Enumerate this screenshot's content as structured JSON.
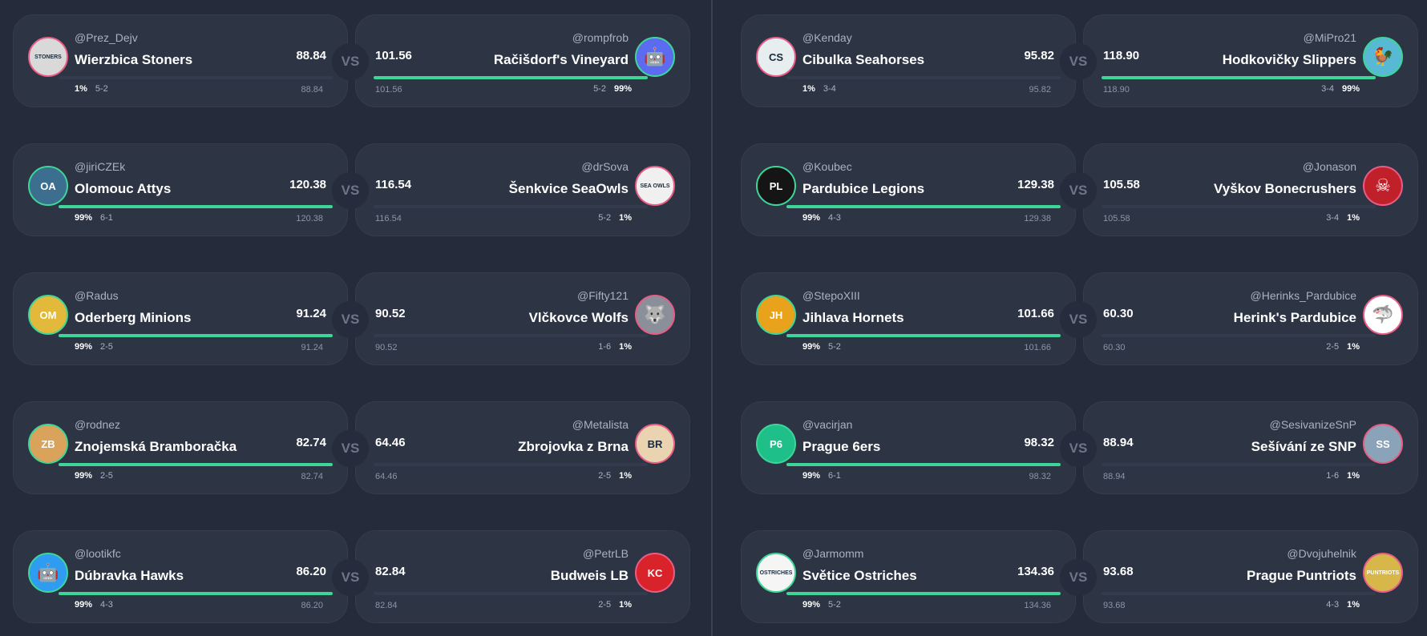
{
  "vs_label": "VS",
  "left": [
    {
      "home": {
        "handle": "@Prez_Dejv",
        "team": "Wierzbica Stoners",
        "score": "88.84",
        "pct": "1%",
        "record": "5-2",
        "points": "88.84",
        "winner": false,
        "avatar_icon": "stoners-logo",
        "avatar_color": "#d9d9d9",
        "avatar_text": "STONERS"
      },
      "away": {
        "handle": "@rompfrob",
        "team": "Račišdorf's Vineyard",
        "score": "101.56",
        "pct": "99%",
        "record": "5-2",
        "points": "101.56",
        "winner": true,
        "avatar_icon": "robot-icon",
        "avatar_color": "#5b6cf0",
        "avatar_text": "🤖"
      }
    },
    {
      "home": {
        "handle": "@jiriCZEk",
        "team": "Olomouc Attys",
        "score": "120.38",
        "pct": "99%",
        "record": "6-1",
        "points": "120.38",
        "winner": true,
        "avatar_icon": "attys-logo",
        "avatar_color": "#3c6e8f",
        "avatar_text": "OA"
      },
      "away": {
        "handle": "@drSova",
        "team": "Šenkvice SeaOwls",
        "score": "116.54",
        "pct": "1%",
        "record": "5-2",
        "points": "116.54",
        "winner": false,
        "avatar_icon": "owl-logo",
        "avatar_color": "#f0f0f0",
        "avatar_text": "SEA OWLS"
      }
    },
    {
      "home": {
        "handle": "@Radus",
        "team": "Oderberg Minions",
        "score": "91.24",
        "pct": "99%",
        "record": "2-5",
        "points": "91.24",
        "winner": true,
        "avatar_icon": "minion-logo",
        "avatar_color": "#e2b93b",
        "avatar_text": "OM"
      },
      "away": {
        "handle": "@Fifty121",
        "team": "Vlčkovce Wolfs",
        "score": "90.52",
        "pct": "1%",
        "record": "1-6",
        "points": "90.52",
        "winner": false,
        "avatar_icon": "wolf-logo",
        "avatar_color": "#8a8f99",
        "avatar_text": "🐺"
      }
    },
    {
      "home": {
        "handle": "@rodnez",
        "team": "Znojemská Bramboračka",
        "score": "82.74",
        "pct": "99%",
        "record": "2-5",
        "points": "82.74",
        "winner": true,
        "avatar_icon": "potato-logo",
        "avatar_color": "#d9a35b",
        "avatar_text": "ZB"
      },
      "away": {
        "handle": "@Metalista",
        "team": "Zbrojovka z Brna",
        "score": "64.46",
        "pct": "1%",
        "record": "2-5",
        "points": "64.46",
        "winner": false,
        "avatar_icon": "zbrojovka-logo",
        "avatar_color": "#e9d3b0",
        "avatar_text": "BR"
      }
    },
    {
      "home": {
        "handle": "@lootikfc",
        "team": "Dúbravka Hawks",
        "score": "86.20",
        "pct": "99%",
        "record": "4-3",
        "points": "86.20",
        "winner": true,
        "avatar_icon": "blue-robot-logo",
        "avatar_color": "#2e9cf0",
        "avatar_text": "🤖"
      },
      "away": {
        "handle": "@PetrLB",
        "team": "Budweis LB",
        "score": "82.84",
        "pct": "1%",
        "record": "2-5",
        "points": "82.84",
        "winner": false,
        "avatar_icon": "chiefs-logo",
        "avatar_color": "#d8232a",
        "avatar_text": "KC"
      }
    }
  ],
  "right": [
    {
      "home": {
        "handle": "@Kenday",
        "team": "Cibulka Seahorses",
        "score": "95.82",
        "pct": "1%",
        "record": "3-4",
        "points": "95.82",
        "winner": false,
        "avatar_icon": "seahorse-logo",
        "avatar_color": "#e6eef0",
        "avatar_text": "CS"
      },
      "away": {
        "handle": "@MiPro21",
        "team": "Hodkovičky Slippers",
        "score": "118.90",
        "pct": "99%",
        "record": "3-4",
        "points": "118.90",
        "winner": true,
        "avatar_icon": "rooster-logo",
        "avatar_color": "#58b9d4",
        "avatar_text": "🐓"
      }
    },
    {
      "home": {
        "handle": "@Koubec",
        "team": "Pardubice Legions",
        "score": "129.38",
        "pct": "99%",
        "record": "4-3",
        "points": "129.38",
        "winner": true,
        "avatar_icon": "spartan-logo",
        "avatar_color": "#151515",
        "avatar_text": "PL"
      },
      "away": {
        "handle": "@Jonason",
        "team": "Vyškov Bonecrushers",
        "score": "105.58",
        "pct": "1%",
        "record": "3-4",
        "points": "105.58",
        "winner": false,
        "avatar_icon": "skull-logo",
        "avatar_color": "#c0202a",
        "avatar_text": "☠"
      }
    },
    {
      "home": {
        "handle": "@StepoXIII",
        "team": "Jihlava Hornets",
        "score": "101.66",
        "pct": "99%",
        "record": "5-2",
        "points": "101.66",
        "winner": true,
        "avatar_icon": "hornets-logo",
        "avatar_color": "#e9a21c",
        "avatar_text": "JH"
      },
      "away": {
        "handle": "@Herinks_Pardubice",
        "team": "Herink's Pardubice",
        "score": "60.30",
        "pct": "1%",
        "record": "2-5",
        "points": "60.30",
        "winner": false,
        "avatar_icon": "shark-logo",
        "avatar_color": "#ffffff",
        "avatar_text": "🦈"
      }
    },
    {
      "home": {
        "handle": "@vacirjan",
        "team": "Prague 6ers",
        "score": "98.32",
        "pct": "99%",
        "record": "6-1",
        "points": "98.32",
        "winner": true,
        "avatar_icon": "p6-logo",
        "avatar_color": "#1fbf8a",
        "avatar_text": "P6"
      },
      "away": {
        "handle": "@SesivanizeSnP",
        "team": "Sešívání ze SNP",
        "score": "88.94",
        "pct": "1%",
        "record": "1-6",
        "points": "88.94",
        "winner": false,
        "avatar_icon": "photo-avatar",
        "avatar_color": "#8aa3b8",
        "avatar_text": "SS"
      }
    },
    {
      "home": {
        "handle": "@Jarmomm",
        "team": "Světice Ostriches",
        "score": "134.36",
        "pct": "99%",
        "record": "5-2",
        "points": "134.36",
        "winner": true,
        "avatar_icon": "ostrich-logo",
        "avatar_color": "#f5f5f5",
        "avatar_text": "OSTRICHES"
      },
      "away": {
        "handle": "@Dvojuhelnik",
        "team": "Prague Puntriots",
        "score": "93.68",
        "pct": "1%",
        "record": "4-3",
        "points": "93.68",
        "winner": false,
        "avatar_icon": "puntriots-logo",
        "avatar_color": "#d7b64a",
        "avatar_text": "PUNTRIOTS"
      }
    }
  ]
}
